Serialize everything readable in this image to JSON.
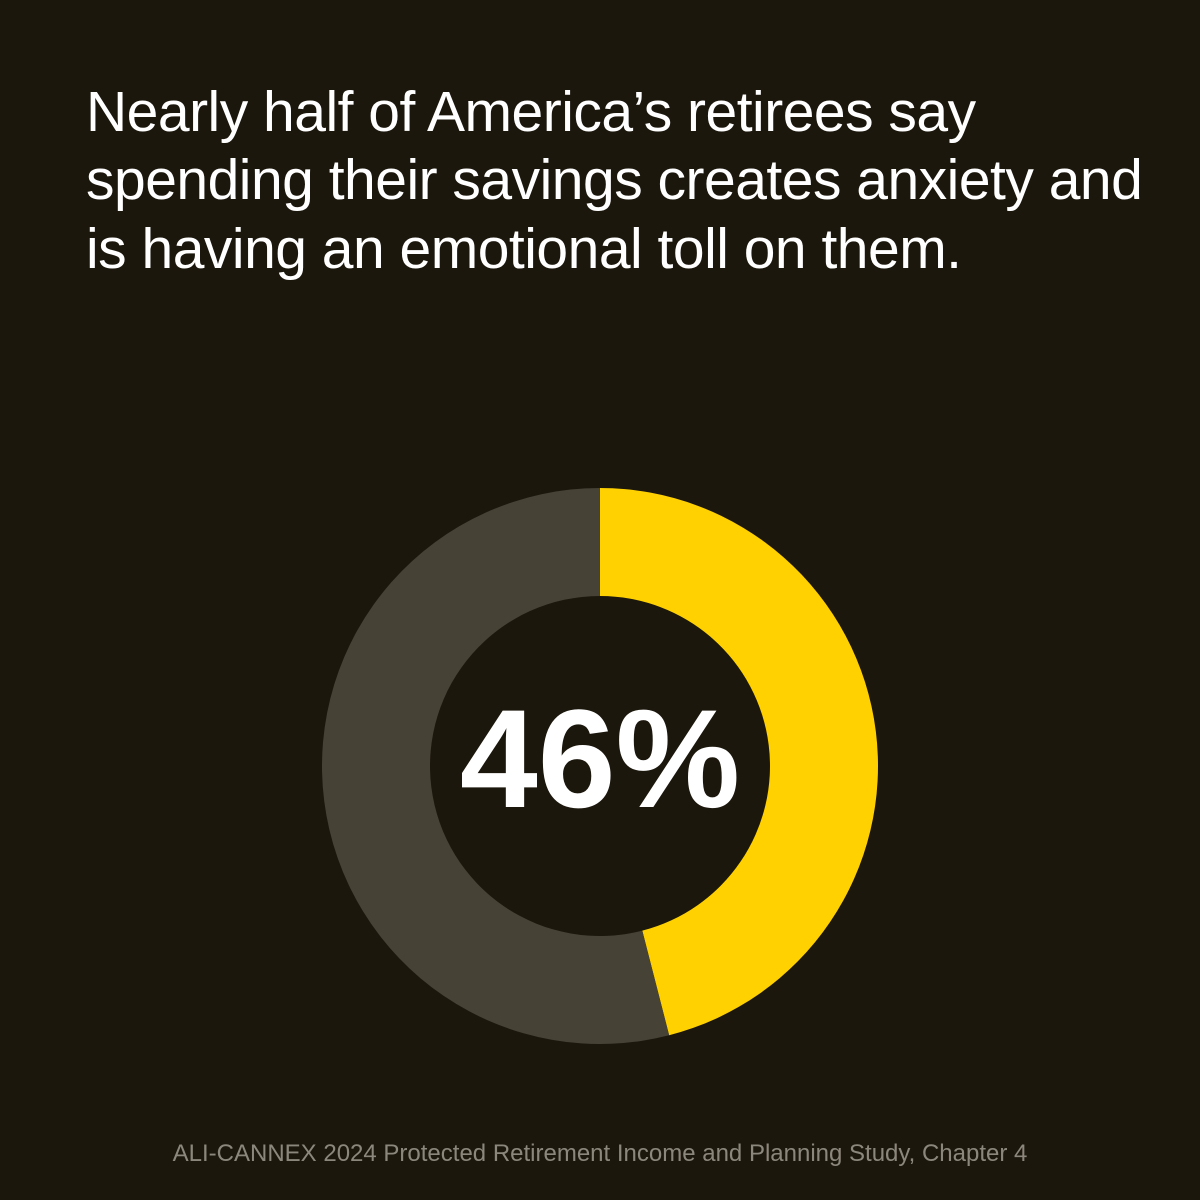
{
  "chart_data": {
    "type": "donut",
    "title": "Nearly half of America’s retirees say spending their savings creates anxiety and is having an emotional toll on them.",
    "values": [
      46,
      54
    ],
    "value_labels": [
      "46%",
      null
    ],
    "colors": [
      "#ffd100",
      "#474236"
    ],
    "source": "ALI-CANNEX 2024 Protected Retirement Income and Planning Study, Chapter 4"
  }
}
